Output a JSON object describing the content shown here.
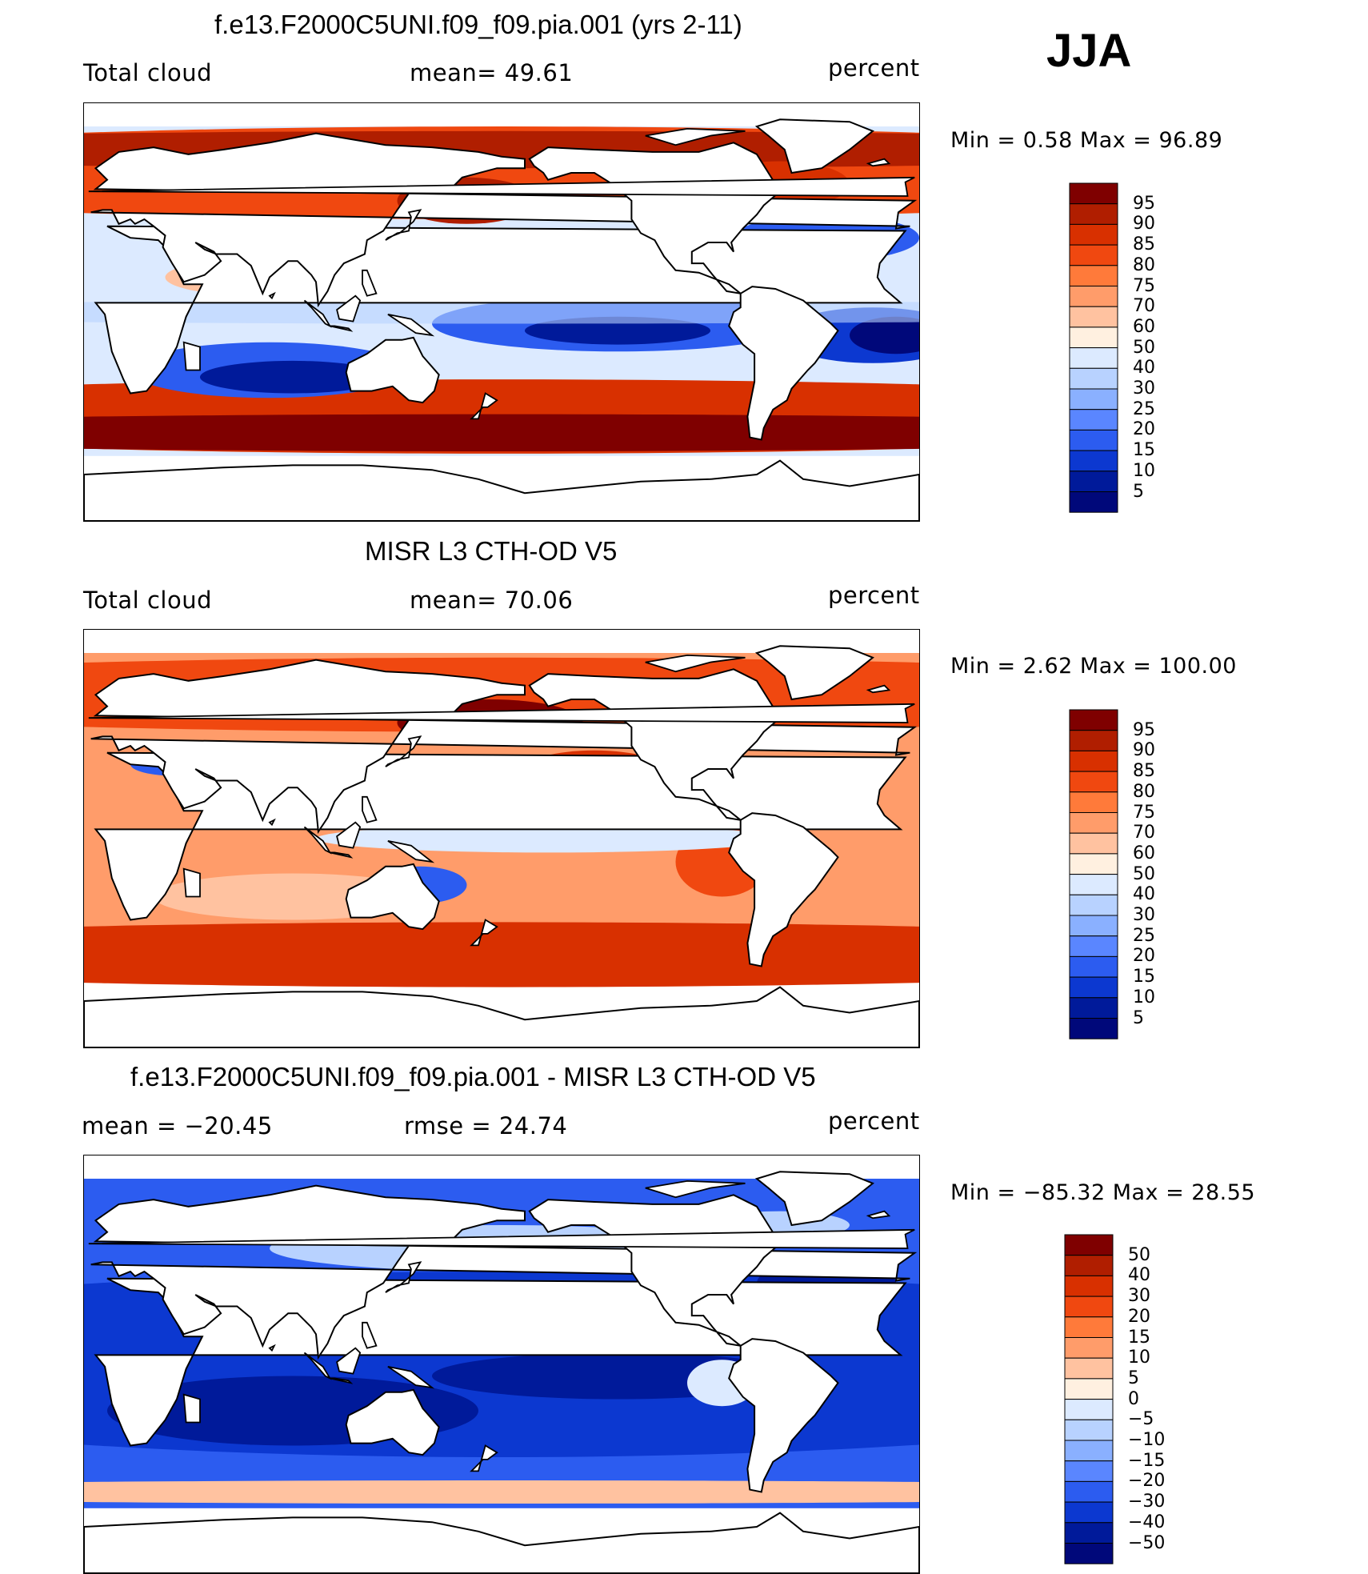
{
  "season": "JJA",
  "panels": [
    {
      "id": "model",
      "title": "f.e13.F2000C5UNI.f09_f09.pia.001 (yrs 2-11)",
      "left_label": "Total cloud",
      "center_label": "mean=   49.61",
      "units": "percent",
      "minmax": "Min =     0.58  Max  =    96.89",
      "levels": [
        "95",
        "90",
        "85",
        "80",
        "75",
        "70",
        "60",
        "50",
        "40",
        "30",
        "25",
        "20",
        "15",
        "10",
        "5"
      ],
      "colors": [
        "#7f0000",
        "#b01e00",
        "#d83000",
        "#f04810",
        "#ff7a3a",
        "#ff9c6a",
        "#ffc2a0",
        "#fff0e0",
        "#dceaff",
        "#b8d2ff",
        "#8ab0ff",
        "#5a86ff",
        "#2c5cf0",
        "#0c38d0",
        "#001a9a",
        "#00087a"
      ]
    },
    {
      "id": "obs",
      "title": "MISR L3 CTH-OD V5",
      "left_label": "Total cloud",
      "center_label": "mean=   70.06",
      "units": "percent",
      "minmax": "Min =     2.62  Max  =  100.00",
      "levels": [
        "95",
        "90",
        "85",
        "80",
        "75",
        "70",
        "60",
        "50",
        "40",
        "30",
        "25",
        "20",
        "15",
        "10",
        "5"
      ],
      "colors": [
        "#7f0000",
        "#b01e00",
        "#d83000",
        "#f04810",
        "#ff7a3a",
        "#ff9c6a",
        "#ffc2a0",
        "#fff0e0",
        "#dceaff",
        "#b8d2ff",
        "#8ab0ff",
        "#5a86ff",
        "#2c5cf0",
        "#0c38d0",
        "#001a9a",
        "#00087a"
      ]
    },
    {
      "id": "diff",
      "title": "f.e13.F2000C5UNI.f09_f09.pia.001 - MISR L3 CTH-OD V5",
      "left_label": "mean  =  −20.45",
      "center_label": "rmse  =    24.74",
      "units": "percent",
      "minmax": "Min  =  −85.32  Max  =    28.55",
      "levels": [
        "50",
        "40",
        "30",
        "20",
        "15",
        "10",
        "5",
        "0",
        "−5",
        "−10",
        "−15",
        "−20",
        "−30",
        "−40",
        "−50"
      ],
      "colors": [
        "#7f0000",
        "#b01e00",
        "#d83000",
        "#f04810",
        "#ff7a3a",
        "#ff9c6a",
        "#ffc2a0",
        "#fff0e0",
        "#dceaff",
        "#b8d2ff",
        "#8ab0ff",
        "#5a86ff",
        "#2c5cf0",
        "#0c38d0",
        "#001a9a",
        "#00087a"
      ]
    }
  ]
}
